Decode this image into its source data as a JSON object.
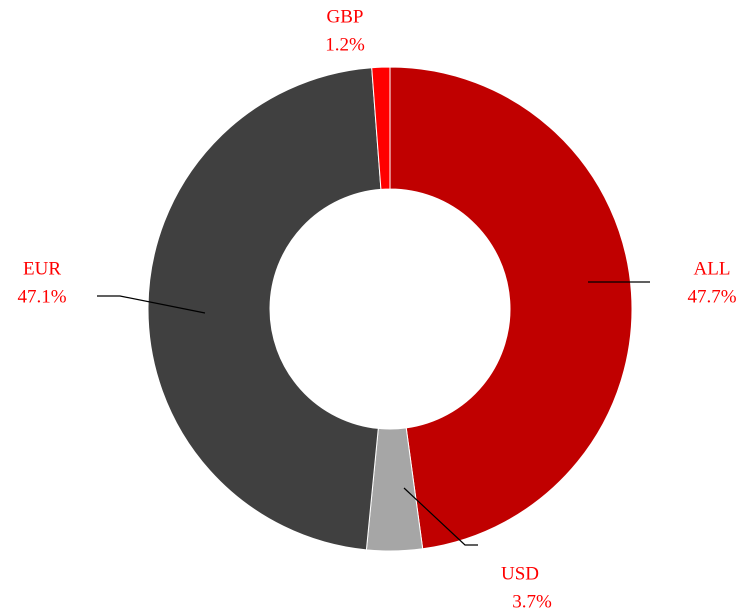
{
  "chart_data": {
    "type": "pie",
    "donut": true,
    "categories": [
      "ALL",
      "USD",
      "EUR",
      "GBP"
    ],
    "values": [
      47.7,
      3.7,
      47.1,
      1.2
    ],
    "value_labels": [
      "47.7%",
      "3.7%",
      "47.1%",
      "1.2%"
    ],
    "colors": [
      "#c00000",
      "#a6a6a6",
      "#404040",
      "#ff0000"
    ]
  }
}
